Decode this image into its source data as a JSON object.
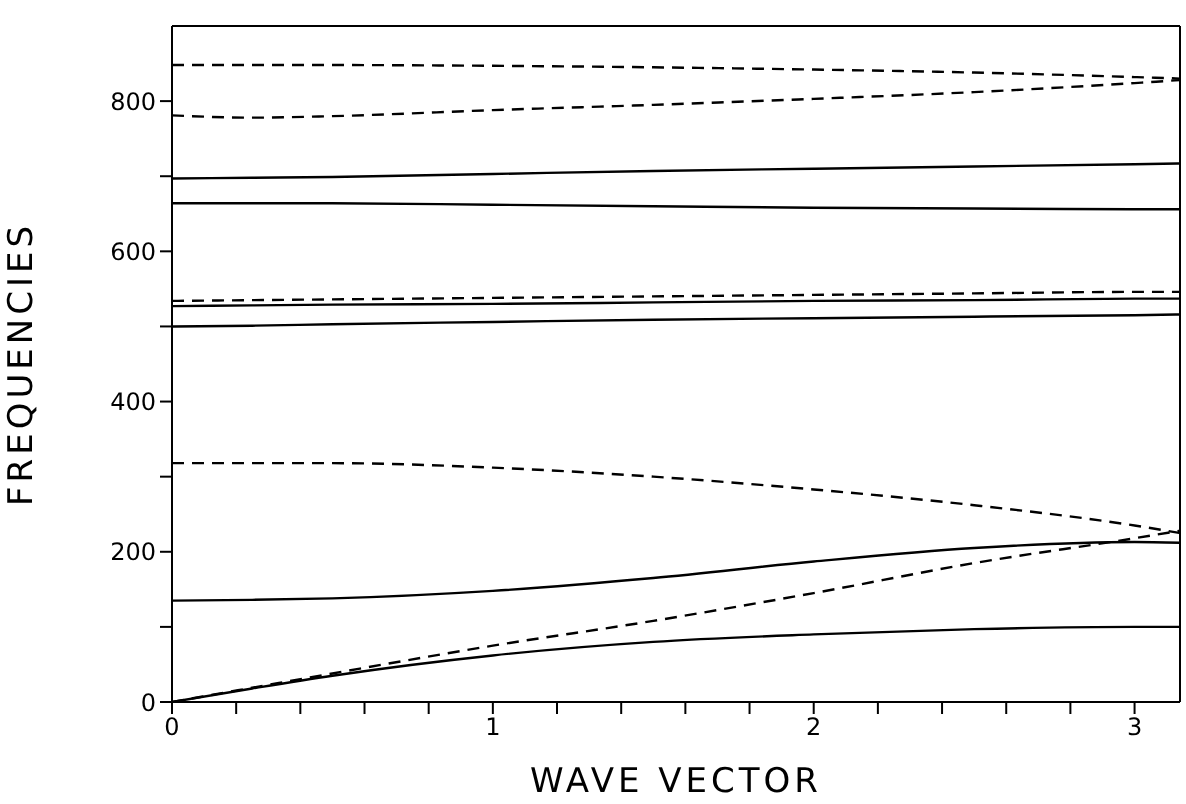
{
  "chart_data": {
    "type": "line",
    "xlabel": "WAVE VECTOR",
    "ylabel": "FREQUENCIES",
    "x": [
      0,
      0.25,
      0.5,
      1,
      1.5,
      2,
      2.5,
      3,
      3.1416
    ],
    "series": [
      {
        "color": "#000000",
        "line_style": "dashed",
        "values": [
          848,
          848,
          848,
          847,
          845,
          842,
          838,
          832,
          830
        ]
      },
      {
        "color": "#000000",
        "line_style": "dashed",
        "values": [
          781,
          778,
          780,
          788,
          795,
          803,
          812,
          824,
          828
        ]
      },
      {
        "color": "#000000",
        "line_style": "solid",
        "values": [
          697,
          698,
          699,
          703,
          707,
          710,
          713,
          716,
          717
        ]
      },
      {
        "color": "#000000",
        "line_style": "solid",
        "values": [
          664,
          664,
          664,
          662,
          660,
          658,
          657,
          656,
          656
        ]
      },
      {
        "color": "#000000",
        "line_style": "dashed",
        "values": [
          534,
          535,
          536,
          538,
          540,
          542,
          544,
          546,
          546
        ]
      },
      {
        "color": "#000000",
        "line_style": "solid",
        "values": [
          527,
          528,
          529,
          530,
          532,
          534,
          535,
          537,
          537
        ]
      },
      {
        "color": "#000000",
        "line_style": "solid",
        "values": [
          500,
          501,
          503,
          506,
          509,
          511,
          513,
          515,
          516
        ]
      },
      {
        "color": "#000000",
        "line_style": "dashed",
        "values": [
          318,
          318,
          318,
          312,
          300,
          283,
          262,
          235,
          225
        ]
      },
      {
        "color": "#000000",
        "line_style": "solid",
        "values": [
          135,
          136,
          138,
          148,
          165,
          187,
          205,
          213,
          212
        ]
      },
      {
        "color": "#000000",
        "line_style": "dashed",
        "values": [
          0,
          19,
          38,
          75,
          108,
          145,
          185,
          218,
          228
        ]
      },
      {
        "color": "#000000",
        "line_style": "solid",
        "values": [
          0,
          18,
          35,
          62,
          80,
          90,
          97,
          100,
          100
        ]
      }
    ],
    "xlim": [
      0,
      3.1416
    ],
    "xticks": [
      0,
      {
        "value": 0.2,
        "label": null
      },
      {
        "value": 0.4,
        "label": null
      },
      {
        "value": 0.6,
        "label": null
      },
      {
        "value": 0.8,
        "label": null
      },
      1,
      {
        "value": 1.2,
        "label": null
      },
      {
        "value": 1.4,
        "label": null
      },
      {
        "value": 1.6,
        "label": null
      },
      {
        "value": 1.8,
        "label": null
      },
      2,
      {
        "value": 2.2,
        "label": null
      },
      {
        "value": 2.4,
        "label": null
      },
      {
        "value": 2.6,
        "label": null
      },
      {
        "value": 2.8,
        "label": null
      },
      3
    ],
    "ylim": [
      0,
      900
    ],
    "yticks": [
      0,
      {
        "value": 100,
        "label": null
      },
      200,
      {
        "value": 300,
        "label": null
      },
      400,
      {
        "value": 500,
        "label": null
      },
      600,
      {
        "value": 700,
        "label": null
      },
      800
    ],
    "grid": false,
    "legend": false,
    "marker": "none"
  }
}
